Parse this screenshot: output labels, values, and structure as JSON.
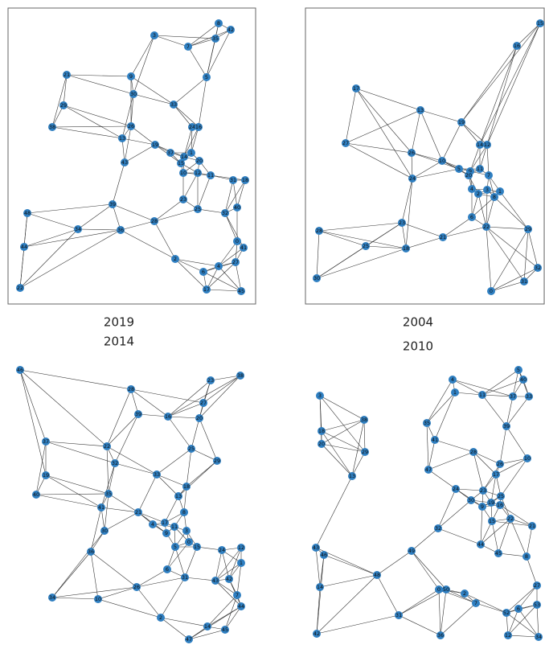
{
  "panels": [
    {
      "nodes": [
        "8",
        "42",
        "3",
        "7",
        "35",
        "21",
        "9",
        "5",
        "29",
        "30",
        "33",
        "38",
        "26",
        "24",
        "16",
        "13",
        "19",
        "43",
        "37",
        "14",
        "1",
        "15",
        "20",
        "10",
        "12",
        "11",
        "31",
        "18",
        "39",
        "23",
        "25",
        "32",
        "40",
        "48",
        "34",
        "36",
        "28",
        "0",
        "41",
        "44",
        "2",
        "4",
        "27",
        "6",
        "22",
        "17",
        "45"
      ]
    },
    {
      "nodes": [
        "15",
        "16",
        "17",
        "13",
        "19",
        "27",
        "26",
        "14",
        "12",
        "10",
        "5",
        "9",
        "11",
        "7",
        "20",
        "24",
        "4",
        "3",
        "1",
        "2",
        "8",
        "23",
        "6",
        "22",
        "21",
        "25",
        "18",
        "29",
        "28",
        "32",
        "31",
        "30",
        "0"
      ]
    },
    {
      "nodes": [
        "46",
        "38",
        "23",
        "28",
        "27",
        "39",
        "16",
        "20",
        "37",
        "22",
        "25",
        "29",
        "32",
        "19",
        "33",
        "40",
        "18",
        "13",
        "35",
        "41",
        "21",
        "8",
        "4",
        "17",
        "11",
        "30",
        "9",
        "3",
        "0",
        "5",
        "15",
        "12",
        "24",
        "1",
        "36",
        "6",
        "31",
        "43",
        "42",
        "7",
        "26",
        "34",
        "10",
        "44",
        "2",
        "14",
        "45",
        "47"
      ]
    },
    {
      "nodes": [
        "5",
        "4",
        "40",
        "11",
        "37",
        "33",
        "1",
        "3",
        "38",
        "35",
        "39",
        "18",
        "20",
        "41",
        "29",
        "28",
        "13",
        "47",
        "26",
        "10",
        "17",
        "24",
        "23",
        "25",
        "30",
        "19",
        "9",
        "16",
        "15",
        "22",
        "21",
        "32",
        "44",
        "43",
        "46",
        "49",
        "45",
        "8",
        "48",
        "14",
        "0",
        "50",
        "2",
        "7",
        "52",
        "6",
        "53",
        "27",
        "31",
        "42",
        "36",
        "12",
        "34"
      ]
    }
  ],
  "captions": [
    "2019",
    "2004",
    "2014",
    "2010"
  ]
}
